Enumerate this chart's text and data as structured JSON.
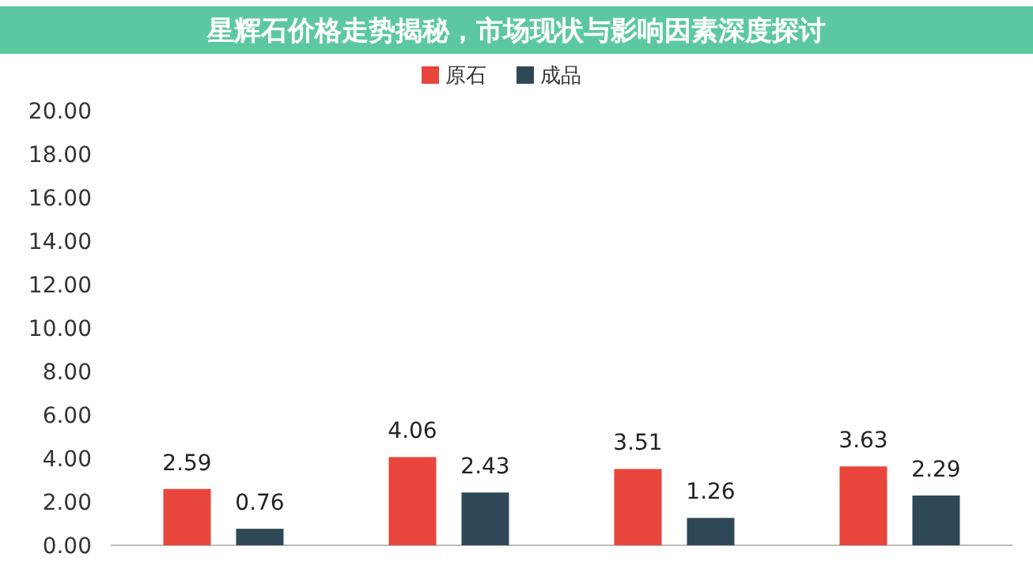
{
  "chart_data": {
    "type": "bar",
    "title": "星辉石价格走势揭秘，市场现状与影响因素深度探讨",
    "categories": [
      null,
      null,
      null,
      null
    ],
    "series": [
      {
        "name": "原石",
        "color": "#e8453c",
        "values": [
          2.59,
          4.06,
          3.51,
          3.63
        ]
      },
      {
        "name": "成品",
        "color": "#2f4858",
        "values": [
          0.76,
          2.43,
          1.26,
          2.29
        ]
      }
    ],
    "ylim": [
      0,
      20
    ],
    "yticks": [
      {
        "value": 0,
        "label": "0.00"
      },
      {
        "value": 2,
        "label": "2.00"
      },
      {
        "value": 4,
        "label": "4.00"
      },
      {
        "value": 6,
        "label": "6.00"
      },
      {
        "value": 8,
        "label": "8.00"
      },
      {
        "value": 10,
        "label": "10.00"
      },
      {
        "value": 12,
        "label": "12.00"
      },
      {
        "value": 14,
        "label": "14.00"
      },
      {
        "value": 16,
        "label": "16.00"
      },
      {
        "value": 18,
        "label": "18.00"
      },
      {
        "value": 20,
        "label": "20.00"
      }
    ],
    "data_labels": true,
    "legend": "top"
  }
}
